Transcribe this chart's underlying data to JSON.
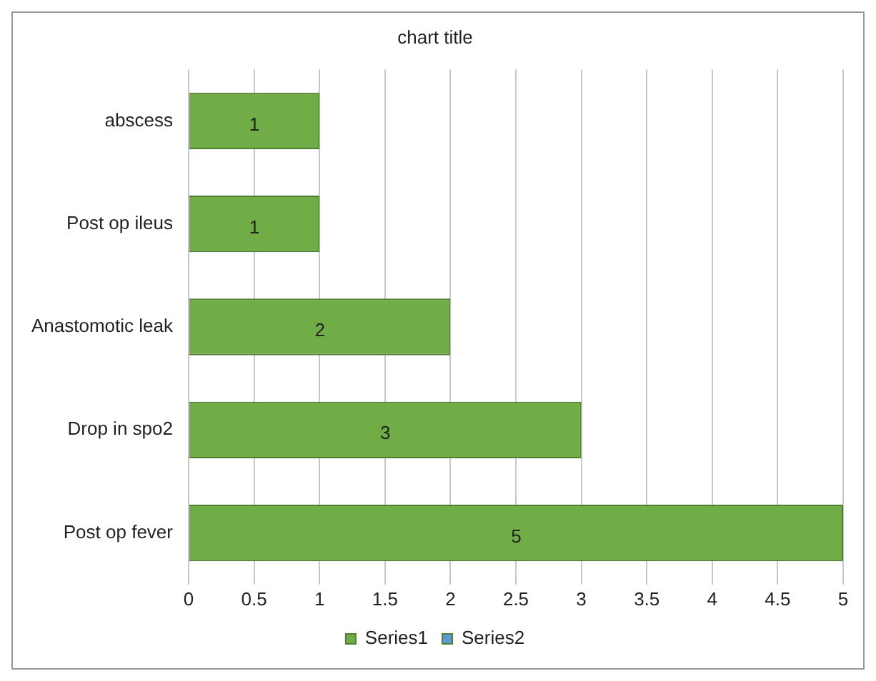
{
  "chart_data": {
    "type": "bar",
    "orientation": "horizontal",
    "title": "chart title",
    "categories": [
      "abscess",
      "Post op ileus",
      "Anastomotic leak",
      "Drop in spo2",
      "Post op fever"
    ],
    "series": [
      {
        "name": "Series1",
        "color": "#70ad47",
        "values": [
          1,
          1,
          2,
          3,
          5
        ]
      },
      {
        "name": "Series2",
        "color": "#5b9bd5",
        "values": [
          null,
          null,
          null,
          null,
          null
        ]
      }
    ],
    "xlim": [
      0,
      5
    ],
    "xticks": [
      0,
      0.5,
      1,
      1.5,
      2,
      2.5,
      3,
      3.5,
      4,
      4.5,
      5
    ],
    "grid": "x",
    "legend": "bottom",
    "data_labels": true
  }
}
